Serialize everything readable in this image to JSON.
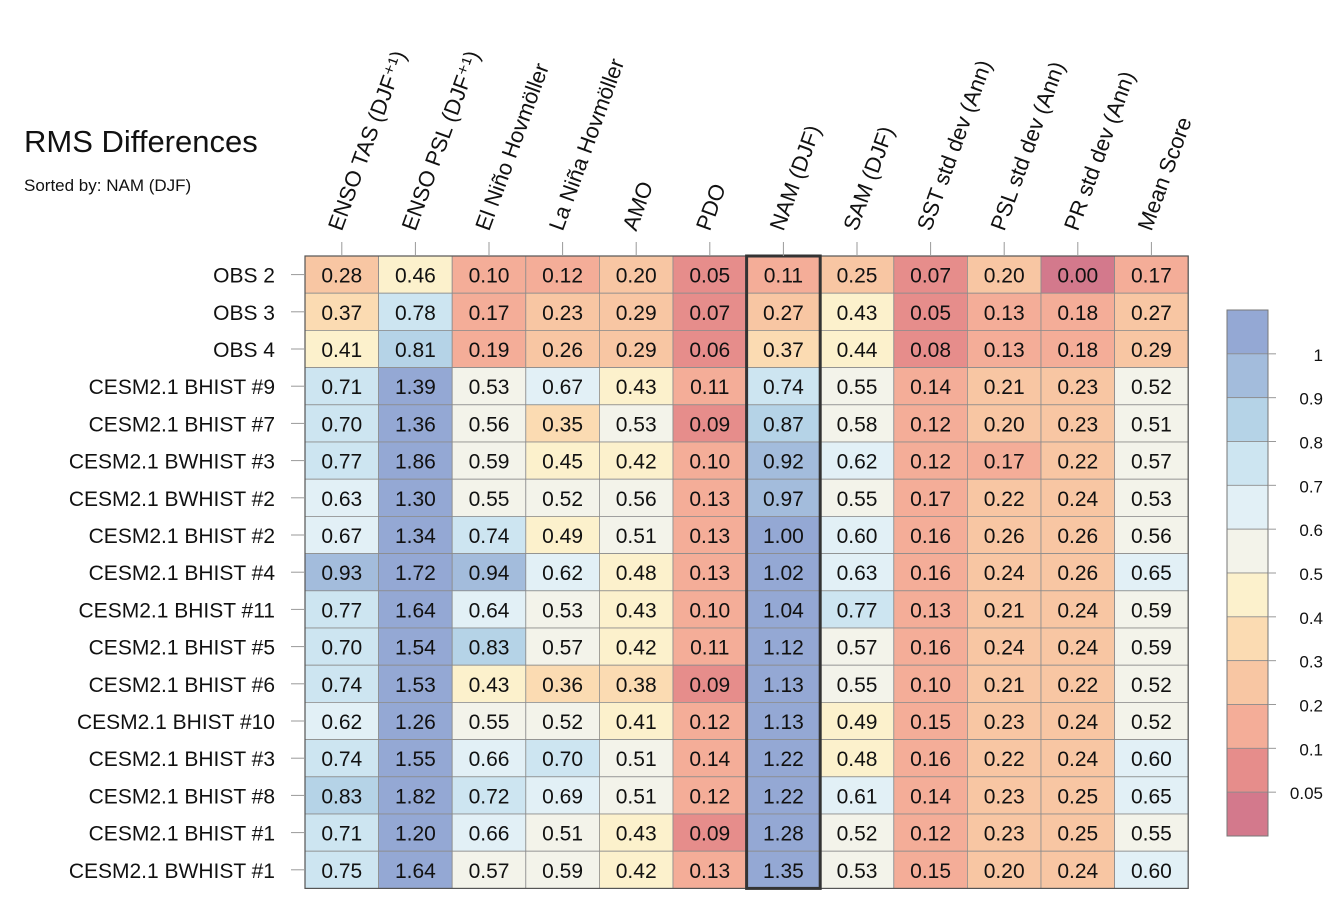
{
  "chart_data": {
    "type": "heatmap",
    "title": "RMS Differences",
    "subtitle": "Sorted by: NAM (DJF)",
    "columns": [
      "ENSO TAS (DJF⁺¹)",
      "ENSO PSL (DJF⁺¹)",
      "El Niño Hovmöller",
      "La Niña Hovmöller",
      "AMO",
      "PDO",
      "NAM (DJF)",
      "SAM (DJF)",
      "SST std dev (Ann)",
      "PSL std dev (Ann)",
      "PR std dev (Ann)",
      "Mean Score"
    ],
    "rows": [
      "OBS 2",
      "OBS 3",
      "OBS 4",
      "CESM2.1 BHIST #9",
      "CESM2.1 BHIST #7",
      "CESM2.1 BWHIST #3",
      "CESM2.1 BWHIST #2",
      "CESM2.1 BHIST #2",
      "CESM2.1 BHIST #4",
      "CESM2.1 BHIST #11",
      "CESM2.1 BHIST #5",
      "CESM2.1 BHIST #6",
      "CESM2.1 BHIST #10",
      "CESM2.1 BHIST #3",
      "CESM2.1 BHIST #8",
      "CESM2.1 BHIST #1",
      "CESM2.1 BWHIST #1"
    ],
    "values": [
      [
        "0.28",
        "0.46",
        "0.10",
        "0.12",
        "0.20",
        "0.05",
        "0.11",
        "0.25",
        "0.07",
        "0.20",
        "0.00",
        "0.17"
      ],
      [
        "0.37",
        "0.78",
        "0.17",
        "0.23",
        "0.29",
        "0.07",
        "0.27",
        "0.43",
        "0.05",
        "0.13",
        "0.18",
        "0.27"
      ],
      [
        "0.41",
        "0.81",
        "0.19",
        "0.26",
        "0.29",
        "0.06",
        "0.37",
        "0.44",
        "0.08",
        "0.13",
        "0.18",
        "0.29"
      ],
      [
        "0.71",
        "1.39",
        "0.53",
        "0.67",
        "0.43",
        "0.11",
        "0.74",
        "0.55",
        "0.14",
        "0.21",
        "0.23",
        "0.52"
      ],
      [
        "0.70",
        "1.36",
        "0.56",
        "0.35",
        "0.53",
        "0.09",
        "0.87",
        "0.58",
        "0.12",
        "0.20",
        "0.23",
        "0.51"
      ],
      [
        "0.77",
        "1.86",
        "0.59",
        "0.45",
        "0.42",
        "0.10",
        "0.92",
        "0.62",
        "0.12",
        "0.17",
        "0.22",
        "0.57"
      ],
      [
        "0.63",
        "1.30",
        "0.55",
        "0.52",
        "0.56",
        "0.13",
        "0.97",
        "0.55",
        "0.17",
        "0.22",
        "0.24",
        "0.53"
      ],
      [
        "0.67",
        "1.34",
        "0.74",
        "0.49",
        "0.51",
        "0.13",
        "1.00",
        "0.60",
        "0.16",
        "0.26",
        "0.26",
        "0.56"
      ],
      [
        "0.93",
        "1.72",
        "0.94",
        "0.62",
        "0.48",
        "0.13",
        "1.02",
        "0.63",
        "0.16",
        "0.24",
        "0.26",
        "0.65"
      ],
      [
        "0.77",
        "1.64",
        "0.64",
        "0.53",
        "0.43",
        "0.10",
        "1.04",
        "0.77",
        "0.13",
        "0.21",
        "0.24",
        "0.59"
      ],
      [
        "0.70",
        "1.54",
        "0.83",
        "0.57",
        "0.42",
        "0.11",
        "1.12",
        "0.57",
        "0.16",
        "0.24",
        "0.24",
        "0.59"
      ],
      [
        "0.74",
        "1.53",
        "0.43",
        "0.36",
        "0.38",
        "0.09",
        "1.13",
        "0.55",
        "0.10",
        "0.21",
        "0.22",
        "0.52"
      ],
      [
        "0.62",
        "1.26",
        "0.55",
        "0.52",
        "0.41",
        "0.12",
        "1.13",
        "0.49",
        "0.15",
        "0.23",
        "0.24",
        "0.52"
      ],
      [
        "0.74",
        "1.55",
        "0.66",
        "0.70",
        "0.51",
        "0.14",
        "1.22",
        "0.48",
        "0.16",
        "0.22",
        "0.24",
        "0.60"
      ],
      [
        "0.83",
        "1.82",
        "0.72",
        "0.69",
        "0.51",
        "0.12",
        "1.22",
        "0.61",
        "0.14",
        "0.23",
        "0.25",
        "0.65"
      ],
      [
        "0.71",
        "1.20",
        "0.66",
        "0.51",
        "0.43",
        "0.09",
        "1.28",
        "0.52",
        "0.12",
        "0.23",
        "0.25",
        "0.55"
      ],
      [
        "0.75",
        "1.64",
        "0.57",
        "0.59",
        "0.42",
        "0.13",
        "1.35",
        "0.53",
        "0.15",
        "0.20",
        "0.24",
        "0.60"
      ]
    ],
    "highlighted_column": "NAM (DJF)",
    "colorbar": {
      "levels": [
        "0.05",
        "0.1",
        "0.2",
        "0.3",
        "0.4",
        "0.5",
        "0.6",
        "0.7",
        "0.8",
        "0.9",
        "1"
      ],
      "colors": [
        "#D3798C",
        "#E68D8B",
        "#F4AD98",
        "#F8C6A3",
        "#FBDBB2",
        "#FCF1CC",
        "#F3F3EA",
        "#E2F0F6",
        "#CDE5F1",
        "#B5D3E7",
        "#A3BCDC",
        "#94A8D4"
      ]
    }
  }
}
